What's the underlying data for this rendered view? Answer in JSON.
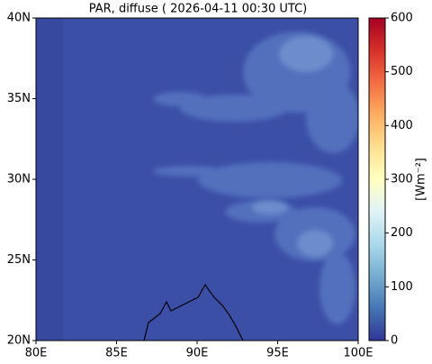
{
  "chart_data": {
    "type": "map",
    "title": "PAR, diffuse ( 2026-04-11 00:30 UTC)",
    "xlim": [
      80,
      100
    ],
    "xticks": [
      {
        "value": 80,
        "label": "80E"
      },
      {
        "value": 85,
        "label": "85E"
      },
      {
        "value": 90,
        "label": "90E"
      },
      {
        "value": 95,
        "label": "95E"
      },
      {
        "value": 100,
        "label": "100E"
      }
    ],
    "ylim": [
      20,
      40
    ],
    "yticks": [
      {
        "value": 20,
        "label": "20N"
      },
      {
        "value": 25,
        "label": "25N"
      },
      {
        "value": 30,
        "label": "30N"
      },
      {
        "value": 35,
        "label": "35N"
      },
      {
        "value": 40,
        "label": "40N"
      }
    ],
    "colorbar": {
      "label": "[Wm⁻²]",
      "lim": [
        0,
        600
      ],
      "ticks": [
        0,
        100,
        200,
        300,
        400,
        500,
        600
      ],
      "colormap": [
        "#313695",
        "#4575b4",
        "#74add1",
        "#abd9e9",
        "#e0f3f8",
        "#ffffbf",
        "#fee090",
        "#fdae61",
        "#f46d43",
        "#d73027",
        "#a50026"
      ]
    }
  }
}
